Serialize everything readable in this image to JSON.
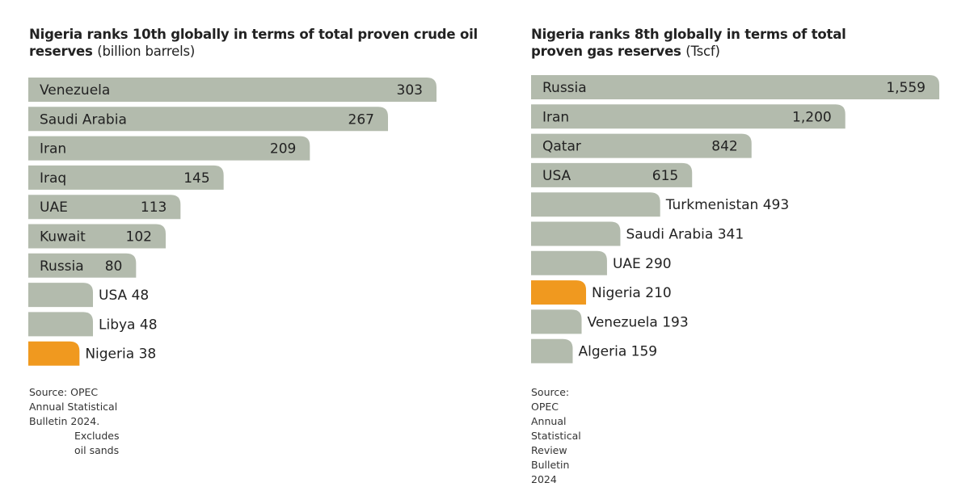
{
  "colors": {
    "bar": "#b3bbad",
    "highlight": "#f0991f"
  },
  "chart_data": [
    {
      "type": "bar",
      "orientation": "horizontal",
      "title": "Nigeria ranks 10th globally in terms of total proven crude oil reserves",
      "unit": "(billion barrels)",
      "categories": [
        "Venezuela",
        "Saudi Arabia",
        "Iran",
        "Iraq",
        "UAE",
        "Kuwait",
        "Russia",
        "USA",
        "Libya",
        "Nigeria"
      ],
      "values": [
        303,
        267,
        209,
        145,
        113,
        102,
        80,
        48,
        48,
        38
      ],
      "value_labels": [
        "303",
        "267",
        "209",
        "145",
        "113",
        "102",
        "80",
        "48",
        "48",
        "38"
      ],
      "highlight": "Nigeria",
      "source": "Source: OPEC Annual Statistical Bulletin 2024.",
      "source_note": "Excludes oil sands"
    },
    {
      "type": "bar",
      "orientation": "horizontal",
      "title": "Nigeria ranks 8th globally in terms of total proven gas reserves",
      "unit": "(Tscf)",
      "categories": [
        "Russia",
        "Iran",
        "Qatar",
        "USA",
        "Turkmenistan",
        "Saudi Arabia",
        "UAE",
        "Nigeria",
        "Venezuela",
        "Algeria"
      ],
      "values": [
        1559,
        1200,
        842,
        615,
        493,
        341,
        290,
        210,
        193,
        159
      ],
      "value_labels": [
        "1,559",
        "1,200",
        "842",
        "615",
        "493",
        "341",
        "290",
        "210",
        "193",
        "159"
      ],
      "highlight": "Nigeria",
      "source": "Source: OPEC Annual Statistical Review Bulletin 2024"
    }
  ]
}
